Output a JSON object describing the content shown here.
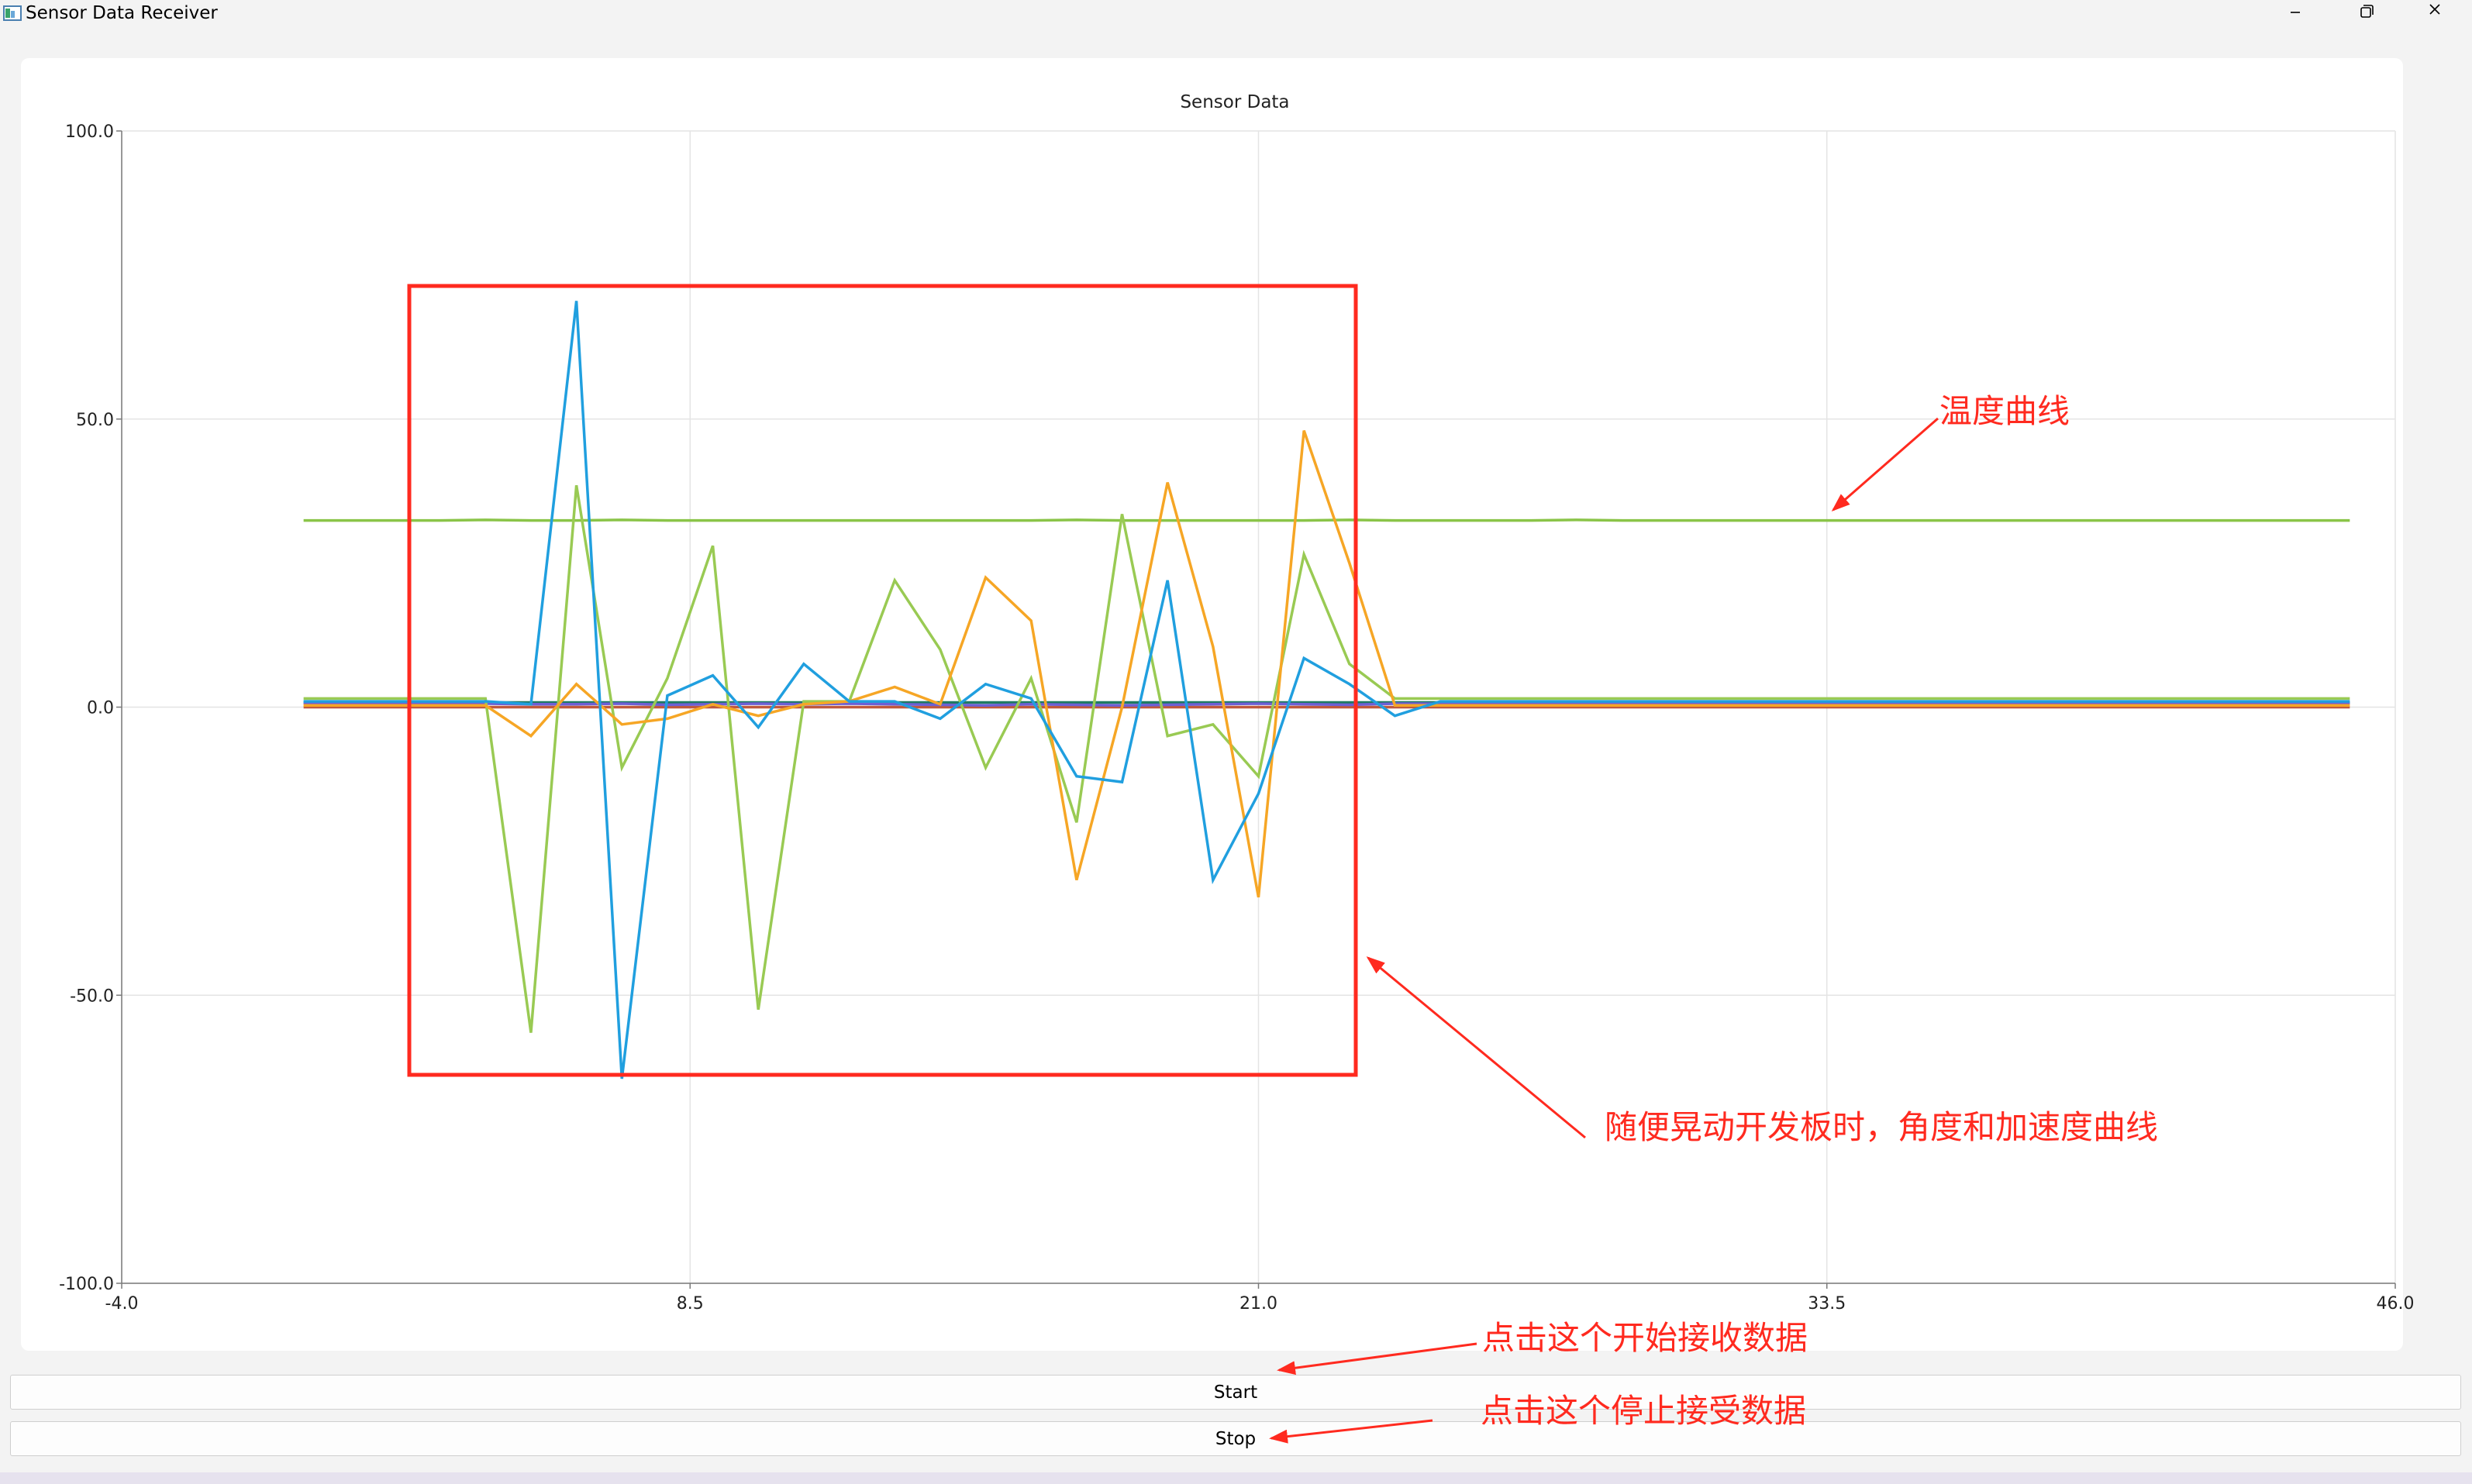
{
  "window": {
    "title": "Sensor Data Receiver",
    "controls": {
      "minimize": "minimize-icon",
      "maximize": "restore-icon",
      "close": "close-icon"
    }
  },
  "chart_data": {
    "type": "line",
    "title": "Sensor Data",
    "xlabel": "",
    "ylabel": "",
    "xlim": [
      -4.0,
      46.0
    ],
    "ylim": [
      -100.0,
      100.0
    ],
    "x_ticks": [
      "-4.0",
      "8.5",
      "21.0",
      "33.5",
      "46.0"
    ],
    "y_ticks": [
      "100.0",
      "50.0",
      "0.0",
      "-50.0",
      "-100.0"
    ],
    "grid": true,
    "legend": "none",
    "x": [
      0,
      1,
      2,
      3,
      4,
      5,
      6,
      7,
      8,
      9,
      10,
      11,
      12,
      13,
      14,
      15,
      16,
      17,
      18,
      19,
      20,
      21,
      22,
      23,
      24,
      25,
      26,
      27,
      28,
      29,
      30,
      31,
      32,
      33,
      34,
      35,
      36,
      37,
      38,
      39,
      40,
      41,
      42,
      43,
      44,
      45
    ],
    "series": [
      {
        "color": "#209fdf",
        "values": [
          1,
          1,
          1,
          1,
          1,
          0.5,
          70.5,
          -64.5,
          2,
          5.5,
          -3.5,
          7.5,
          1,
          1,
          -2,
          4,
          1.5,
          -12,
          -13,
          22,
          -30,
          -15,
          8.5,
          4,
          -1.5,
          1,
          1,
          1,
          1,
          1,
          1,
          1,
          1,
          1,
          1,
          1,
          1,
          1,
          1,
          1,
          1,
          1,
          1,
          1,
          1,
          1
        ]
      },
      {
        "color": "#f6a625",
        "values": [
          0.3,
          0.3,
          0.3,
          0.3,
          0.3,
          -5,
          4,
          -3,
          -2,
          0.5,
          -1.5,
          0.5,
          1,
          3.5,
          0.5,
          22.5,
          15,
          -30,
          0,
          39,
          10.5,
          -33,
          48,
          25,
          0.3,
          0.3,
          0.3,
          0.3,
          0.3,
          0.3,
          0.3,
          0.3,
          0.3,
          0.3,
          0.3,
          0.3,
          0.3,
          0.3,
          0.3,
          0.3,
          0.3,
          0.3,
          0.3,
          0.3,
          0.3,
          0.3
        ]
      },
      {
        "color": "#99ca53",
        "values": [
          1.5,
          1.5,
          1.5,
          1.5,
          1.5,
          -56.5,
          38.5,
          -10.5,
          5,
          28,
          -52.5,
          1,
          1,
          22,
          10,
          -10.5,
          5,
          -20,
          33.5,
          -5,
          -3,
          -12,
          26.5,
          7.5,
          1.5,
          1.5,
          1.5,
          1.5,
          1.5,
          1.5,
          1.5,
          1.5,
          1.5,
          1.5,
          1.5,
          1.5,
          1.5,
          1.5,
          1.5,
          1.5,
          1.5,
          1.5,
          1.5,
          1.5,
          1.5,
          1.5
        ]
      },
      {
        "color": "#8ac448",
        "values": [
          32.4,
          32.4,
          32.4,
          32.4,
          32.5,
          32.4,
          32.4,
          32.5,
          32.4,
          32.4,
          32.4,
          32.4,
          32.4,
          32.4,
          32.4,
          32.4,
          32.4,
          32.5,
          32.4,
          32.4,
          32.4,
          32.4,
          32.4,
          32.5,
          32.4,
          32.4,
          32.4,
          32.4,
          32.5,
          32.4,
          32.4,
          32.4,
          32.4,
          32.4,
          32.4,
          32.4,
          32.4,
          32.4,
          32.4,
          32.4,
          32.4,
          32.4,
          32.4,
          32.4,
          32.4,
          32.4
        ]
      },
      {
        "color": "#6d5fd5",
        "values": [
          0.6,
          0.6,
          0.6,
          0.6,
          0.6,
          0.5,
          0.5,
          0.6,
          0.4,
          0.5,
          0.6,
          0.5,
          0.6,
          0.5,
          0.4,
          0.3,
          0.5,
          0.4,
          0.3,
          0.4,
          0.5,
          0.6,
          0.5,
          0.4,
          0.6,
          0.6,
          0.6,
          0.6,
          0.6,
          0.6,
          0.6,
          0.6,
          0.6,
          0.6,
          0.6,
          0.6,
          0.6,
          0.6,
          0.6,
          0.6,
          0.6,
          0.6,
          0.6,
          0.6,
          0.6,
          0.6
        ]
      },
      {
        "color": "#bf593e",
        "values": [
          0,
          0,
          0,
          0,
          0,
          0,
          0,
          0,
          0,
          0,
          0,
          0,
          0,
          0,
          0,
          0,
          0,
          0,
          0,
          0,
          0,
          0,
          0,
          0,
          0,
          0,
          0,
          0,
          0,
          0,
          0,
          0,
          0,
          0,
          0,
          0,
          0,
          0,
          0,
          0,
          0,
          0,
          0,
          0,
          0,
          0
        ]
      },
      {
        "color": "#1f7a62",
        "values": [
          0.8,
          0.8,
          0.8,
          0.8,
          0.8,
          0.8,
          0.8,
          0.8,
          0.8,
          0.8,
          0.8,
          0.8,
          0.8,
          0.8,
          0.8,
          0.8,
          0.8,
          0.8,
          0.8,
          0.8,
          0.8,
          0.8,
          0.8,
          0.8,
          0.8,
          0.8,
          0.8,
          0.8,
          0.8,
          0.8,
          0.8,
          0.8,
          0.8,
          0.8,
          0.8,
          0.8,
          0.8,
          0.8,
          0.8,
          0.8,
          0.8,
          0.8,
          0.8,
          0.8,
          0.8,
          0.8
        ]
      }
    ]
  },
  "buttons": {
    "start": "Start",
    "stop": "Stop"
  },
  "annotations": {
    "color": "#ff2a1f",
    "temperature": "温度曲线",
    "shake": "随便晃动开发板时，角度和加速度曲线",
    "start": "点击这个开始接收数据",
    "stop": "点击这个停止接受数据"
  }
}
